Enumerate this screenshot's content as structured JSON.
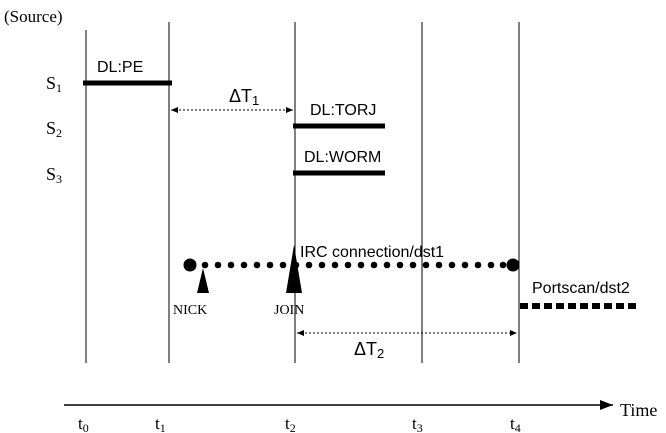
{
  "axis": {
    "y_label": "(Source)",
    "x_label": "Time",
    "ticks": [
      {
        "base": "t",
        "sub": "0"
      },
      {
        "base": "t",
        "sub": "1"
      },
      {
        "base": "t",
        "sub": "2"
      },
      {
        "base": "t",
        "sub": "3"
      },
      {
        "base": "t",
        "sub": "4"
      }
    ]
  },
  "sources": [
    {
      "base": "S",
      "sub": "1"
    },
    {
      "base": "S",
      "sub": "2"
    },
    {
      "base": "S",
      "sub": "3"
    }
  ],
  "downloads": {
    "pe": "DL:PE",
    "torj": "DL:TORJ",
    "worm": "DL:WORM"
  },
  "intervals": {
    "dt1": {
      "base": "ΔT",
      "sub": "1"
    },
    "dt2": {
      "base": "ΔT",
      "sub": "2"
    }
  },
  "irc": {
    "label": "IRC connection/dst1",
    "nick": "NICK",
    "join": "JOIN"
  },
  "portscan": {
    "label": "Portscan/dst2"
  }
}
